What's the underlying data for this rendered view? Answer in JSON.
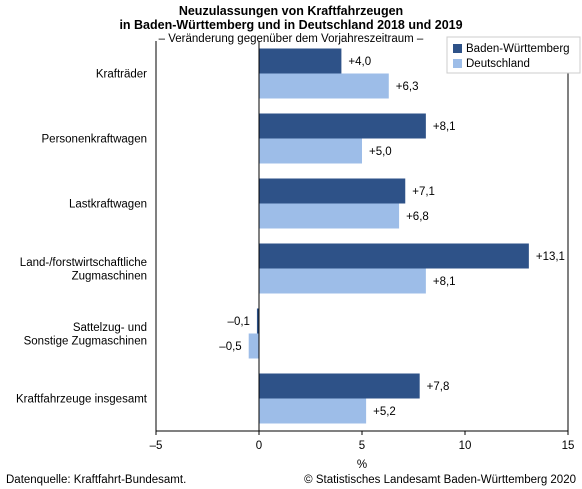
{
  "title_lines": [
    "Neuzulassungen von Kraftfahrzeugen",
    "in Baden-Württemberg und in Deutschland 2018 und 2019"
  ],
  "subtitle": "– Veränderung gegenüber dem Vorjahreszeitraum –",
  "source": "Datenquelle: Kraftfahrt-Bundesamt.",
  "copyright": "© Statistisches Landesamt Baden-Württemberg 2020",
  "colors": {
    "bw": "#2e5288",
    "de": "#9dbde8"
  },
  "chart_data": {
    "type": "bar",
    "orientation": "horizontal",
    "categories": [
      [
        "Krafträder"
      ],
      [
        "Personenkraftwagen"
      ],
      [
        "Lastkraftwagen"
      ],
      [
        "Land-/forstwirtschaftliche",
        "Zugmaschinen"
      ],
      [
        "Sattelzug- und",
        "Sonstige Zugmaschinen"
      ],
      [
        "Kraftfahrzeuge insgesamt"
      ]
    ],
    "series": [
      {
        "name": "Baden-Württemberg",
        "values": [
          4.0,
          8.1,
          7.1,
          13.1,
          -0.1,
          7.8
        ],
        "labels": [
          "+4,0",
          "+8,1",
          "+7,1",
          "+13,1",
          "–0,1",
          "+7,8"
        ]
      },
      {
        "name": "Deutschland",
        "values": [
          6.3,
          5.0,
          6.8,
          8.1,
          -0.5,
          5.2
        ],
        "labels": [
          "+6,3",
          "+5,0",
          "+6,8",
          "+8,1",
          "–0,5",
          "+5,2"
        ]
      }
    ],
    "xlim": [
      -5,
      15
    ],
    "xticks": [
      -5,
      0,
      5,
      10,
      15
    ],
    "xtick_labels": [
      "–5",
      "0",
      "5",
      "10",
      "15"
    ],
    "xlabel": "%",
    "legend_position": "top-right",
    "grid": false
  }
}
